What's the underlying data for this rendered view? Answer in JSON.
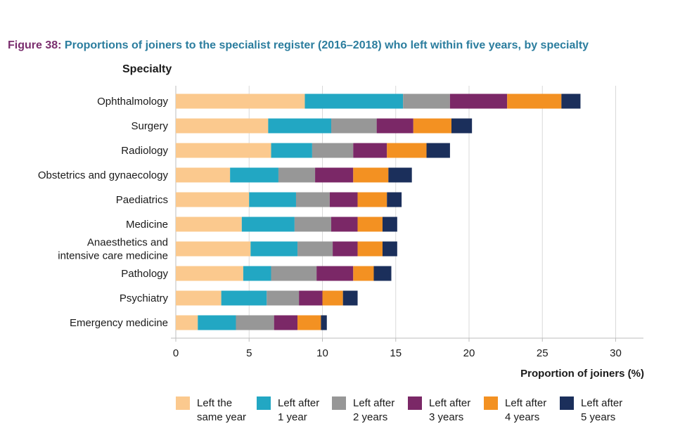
{
  "figure": {
    "label": "Figure 38",
    "separator": ":",
    "title": " Proportions of joiners to the specialist register (2016–2018) who left within five years, by specialty",
    "label_color": "#7a2e6e",
    "title_color": "#2b7d9e"
  },
  "chart_data": {
    "type": "bar",
    "orientation": "horizontal",
    "stacked": true,
    "title": "Proportions of joiners to the specialist register (2016–2018) who left within five years, by specialty",
    "ylabel": "Specialty",
    "xlabel": "Proportion of joiners (%)",
    "xlim": [
      0,
      32
    ],
    "xticks": [
      0,
      5,
      10,
      15,
      20,
      25,
      30
    ],
    "grid": true,
    "legend_position": "bottom",
    "categories": [
      "Ophthalmology",
      "Surgery",
      "Radiology",
      "Obstetrics and gynaecology",
      "Paediatrics",
      "Medicine",
      "Anaesthetics and\nintensive care medicine",
      "Pathology",
      "Psychiatry",
      "Emergency medicine"
    ],
    "series": [
      {
        "name": "Left the\nsame year",
        "color": "#fbc98e",
        "values": [
          8.8,
          6.3,
          6.5,
          3.7,
          5.0,
          4.5,
          5.1,
          4.6,
          3.1,
          1.5
        ]
      },
      {
        "name": "Left after\n1 year",
        "color": "#22a7c3",
        "values": [
          6.7,
          4.3,
          2.8,
          3.3,
          3.2,
          3.6,
          3.2,
          1.9,
          3.1,
          2.6
        ]
      },
      {
        "name": "Left after\n2 years",
        "color": "#979797",
        "values": [
          3.2,
          3.1,
          2.8,
          2.5,
          2.3,
          2.5,
          2.4,
          3.1,
          2.2,
          2.6
        ]
      },
      {
        "name": "Left after\n3 years",
        "color": "#7b2867",
        "values": [
          3.9,
          2.5,
          2.3,
          2.6,
          1.9,
          1.8,
          1.7,
          2.5,
          1.6,
          1.6
        ]
      },
      {
        "name": "Left after\n4 years",
        "color": "#f39122",
        "values": [
          3.7,
          2.6,
          2.7,
          2.4,
          2.0,
          1.7,
          1.7,
          1.4,
          1.4,
          1.6
        ]
      },
      {
        "name": "Left after\n5 years",
        "color": "#1b2f5b",
        "values": [
          1.3,
          1.4,
          1.6,
          1.6,
          1.0,
          1.0,
          1.0,
          1.2,
          1.0,
          0.4
        ]
      }
    ]
  }
}
